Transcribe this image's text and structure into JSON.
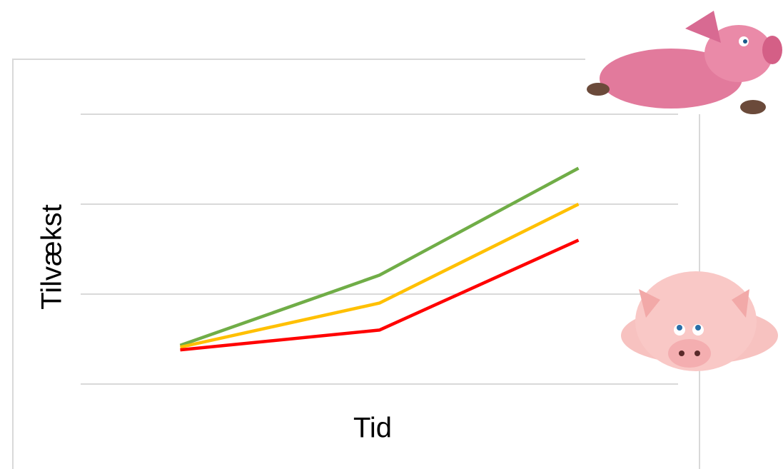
{
  "chart_data": {
    "type": "line",
    "x_label": "Tid",
    "y_label": "Tilvækst",
    "categories": [
      null,
      null,
      null
    ],
    "series": [
      {
        "color": "#70ad47",
        "values": [
          0.43,
          1.21,
          2.4
        ]
      },
      {
        "color": "#ffc000",
        "values": [
          0.41,
          0.9,
          2.0
        ]
      },
      {
        "color": "#ff0000",
        "values": [
          0.38,
          0.6,
          1.6
        ]
      }
    ],
    "ylim": [
      0,
      3
    ],
    "yticks": [
      0,
      1,
      2,
      3
    ],
    "grid": true
  }
}
